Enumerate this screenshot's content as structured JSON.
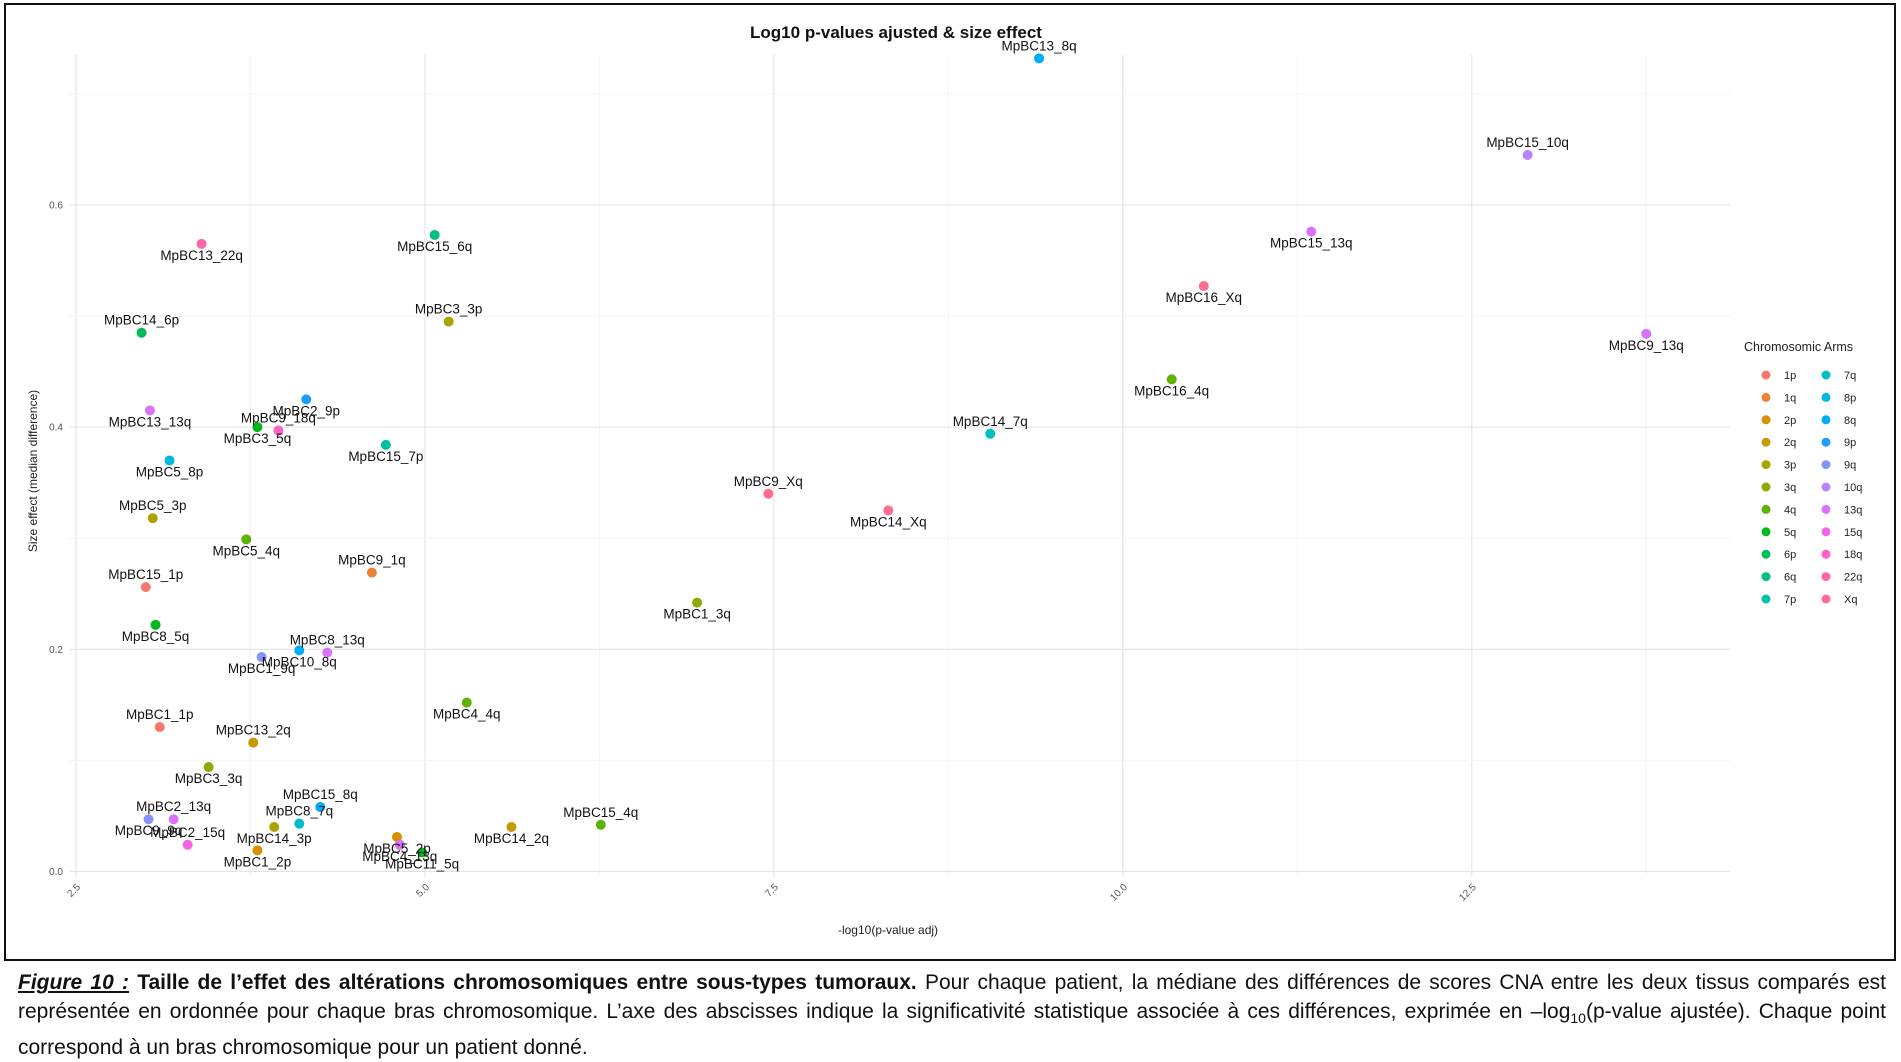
{
  "chart_data": {
    "type": "scatter",
    "title": "Log10 p-values ajusted & size effect",
    "xlabel": "-log10(p-value adj)",
    "ylabel": "Size effect (median difference)",
    "xlim": [
      2.45,
      14.35
    ],
    "ylim": [
      -0.005,
      0.735
    ],
    "x_ticks": [
      "2.5",
      "5.0",
      "7.5",
      "10.0",
      "12.5"
    ],
    "y_ticks": [
      "0.0",
      "0.2",
      "0.4",
      "0.6"
    ],
    "grid": true,
    "legend_title": "Chromosomic Arms",
    "legend_position": "right",
    "categories": [
      {
        "name": "1p",
        "color": "#F8766D"
      },
      {
        "name": "1q",
        "color": "#EB8335"
      },
      {
        "name": "2p",
        "color": "#DA8F00"
      },
      {
        "name": "2q",
        "color": "#C49A00"
      },
      {
        "name": "3p",
        "color": "#AAA300"
      },
      {
        "name": "3q",
        "color": "#8AAB00"
      },
      {
        "name": "4q",
        "color": "#5EB300"
      },
      {
        "name": "5q",
        "color": "#00B81F"
      },
      {
        "name": "6p",
        "color": "#00BD5C"
      },
      {
        "name": "6q",
        "color": "#00BF7F"
      },
      {
        "name": "7p",
        "color": "#00C0A3"
      },
      {
        "name": "7q",
        "color": "#00BFC4"
      },
      {
        "name": "8p",
        "color": "#00B9E3"
      },
      {
        "name": "8q",
        "color": "#00ADFA"
      },
      {
        "name": "9p",
        "color": "#1E9DFF"
      },
      {
        "name": "9q",
        "color": "#8494FF"
      },
      {
        "name": "10q",
        "color": "#B883FF"
      },
      {
        "name": "13q",
        "color": "#DB72FB"
      },
      {
        "name": "15q",
        "color": "#F265E7"
      },
      {
        "name": "18q",
        "color": "#FF61C9"
      },
      {
        "name": "22q",
        "color": "#FF66A8"
      },
      {
        "name": "Xq",
        "color": "#FF6C91"
      }
    ],
    "points": [
      {
        "label": "MpBC13_8q",
        "arm": "8q",
        "x": 9.4,
        "y": 0.732
      },
      {
        "label": "MpBC15_10q",
        "arm": "10q",
        "x": 12.9,
        "y": 0.645
      },
      {
        "label": "MpBC15_13q",
        "arm": "13q",
        "x": 11.35,
        "y": 0.576
      },
      {
        "label": "MpBC9_13q",
        "arm": "13q",
        "x": 13.75,
        "y": 0.484
      },
      {
        "label": "MpBC16_Xq",
        "arm": "Xq",
        "x": 10.58,
        "y": 0.527
      },
      {
        "label": "MpBC16_4q",
        "arm": "4q",
        "x": 10.35,
        "y": 0.443
      },
      {
        "label": "MpBC14_7q",
        "arm": "7q",
        "x": 9.05,
        "y": 0.394
      },
      {
        "label": "MpBC14_Xq",
        "arm": "Xq",
        "x": 8.32,
        "y": 0.325
      },
      {
        "label": "MpBC9_Xq",
        "arm": "Xq",
        "x": 7.46,
        "y": 0.34
      },
      {
        "label": "MpBC1_3q",
        "arm": "3q",
        "x": 6.95,
        "y": 0.242
      },
      {
        "label": "MpBC13_22q",
        "arm": "22q",
        "x": 3.4,
        "y": 0.565
      },
      {
        "label": "MpBC15_6q",
        "arm": "6q",
        "x": 5.07,
        "y": 0.573
      },
      {
        "label": "MpBC3_3p",
        "arm": "3p",
        "x": 5.17,
        "y": 0.495
      },
      {
        "label": "MpBC14_6p",
        "arm": "6p",
        "x": 2.97,
        "y": 0.485
      },
      {
        "label": "MpBC2_9p",
        "arm": "9p",
        "x": 4.15,
        "y": 0.425
      },
      {
        "label": "MpBC13_13q",
        "arm": "13q",
        "x": 3.03,
        "y": 0.415
      },
      {
        "label": "MpBC3_5q",
        "arm": "5q",
        "x": 3.8,
        "y": 0.4
      },
      {
        "label": "MpBC9_18q",
        "arm": "18q",
        "x": 3.95,
        "y": 0.397
      },
      {
        "label": "MpBC15_7p",
        "arm": "7p",
        "x": 4.72,
        "y": 0.384
      },
      {
        "label": "MpBC5_8p",
        "arm": "8p",
        "x": 3.17,
        "y": 0.37
      },
      {
        "label": "MpBC5_3p",
        "arm": "3p",
        "x": 3.05,
        "y": 0.318
      },
      {
        "label": "MpBC5_4q",
        "arm": "4q",
        "x": 3.72,
        "y": 0.299
      },
      {
        "label": "MpBC9_1q",
        "arm": "1q",
        "x": 4.62,
        "y": 0.269
      },
      {
        "label": "MpBC15_1p",
        "arm": "1p",
        "x": 3.0,
        "y": 0.256
      },
      {
        "label": "MpBC8_5q",
        "arm": "5q",
        "x": 3.07,
        "y": 0.222
      },
      {
        "label": "MpBC10_8q",
        "arm": "8q",
        "x": 4.1,
        "y": 0.199
      },
      {
        "label": "MpBC8_13q",
        "arm": "13q",
        "x": 4.3,
        "y": 0.197
      },
      {
        "label": "MpBC1_9q",
        "arm": "9q",
        "x": 3.83,
        "y": 0.193
      },
      {
        "label": "MpBC4_4q",
        "arm": "4q",
        "x": 5.3,
        "y": 0.152
      },
      {
        "label": "MpBC1_1p",
        "arm": "1p",
        "x": 3.1,
        "y": 0.13
      },
      {
        "label": "MpBC13_2q",
        "arm": "2q",
        "x": 3.77,
        "y": 0.116
      },
      {
        "label": "MpBC3_3q",
        "arm": "3q",
        "x": 3.45,
        "y": 0.094
      },
      {
        "label": "MpBC15_8q",
        "arm": "8q",
        "x": 4.25,
        "y": 0.058
      },
      {
        "label": "MpBC8_7q",
        "arm": "7q",
        "x": 4.1,
        "y": 0.043
      },
      {
        "label": "MpBC9_9q",
        "arm": "9q",
        "x": 3.02,
        "y": 0.047
      },
      {
        "label": "MpBC2_13q",
        "arm": "13q",
        "x": 3.2,
        "y": 0.047
      },
      {
        "label": "MpBC14_3p",
        "arm": "3p",
        "x": 3.92,
        "y": 0.04
      },
      {
        "label": "MpBC14_2q",
        "arm": "2q",
        "x": 5.62,
        "y": 0.04
      },
      {
        "label": "MpBC15_4q",
        "arm": "4q",
        "x": 6.26,
        "y": 0.042
      },
      {
        "label": "MpBC5_2p",
        "arm": "2p",
        "x": 4.8,
        "y": 0.031
      },
      {
        "label": "MpBC4_13q",
        "arm": "13q",
        "x": 4.82,
        "y": 0.024
      },
      {
        "label": "MpBC2_15q",
        "arm": "15q",
        "x": 3.3,
        "y": 0.024
      },
      {
        "label": "MpBC1_2p",
        "arm": "2p",
        "x": 3.8,
        "y": 0.019
      },
      {
        "label": "MpBC11_5q",
        "arm": "5q",
        "x": 4.98,
        "y": 0.017
      }
    ]
  },
  "caption": {
    "label": "Figure 10 :",
    "heading": "Taille de l’effet des altérations chromosomiques entre sous-types tumoraux.",
    "body_part1": "Pour chaque patient, la médiane des différences de scores CNA entre les deux tissus comparés est représentée en ordonnée pour chaque bras chromosomique. L’axe des abscisses indique la significativité statistique associée à ces différences, exprimée en –log",
    "subscript": "10",
    "body_part2": "(p-value ajustée). Chaque point correspond à un bras chromosomique pour un patient donné."
  }
}
